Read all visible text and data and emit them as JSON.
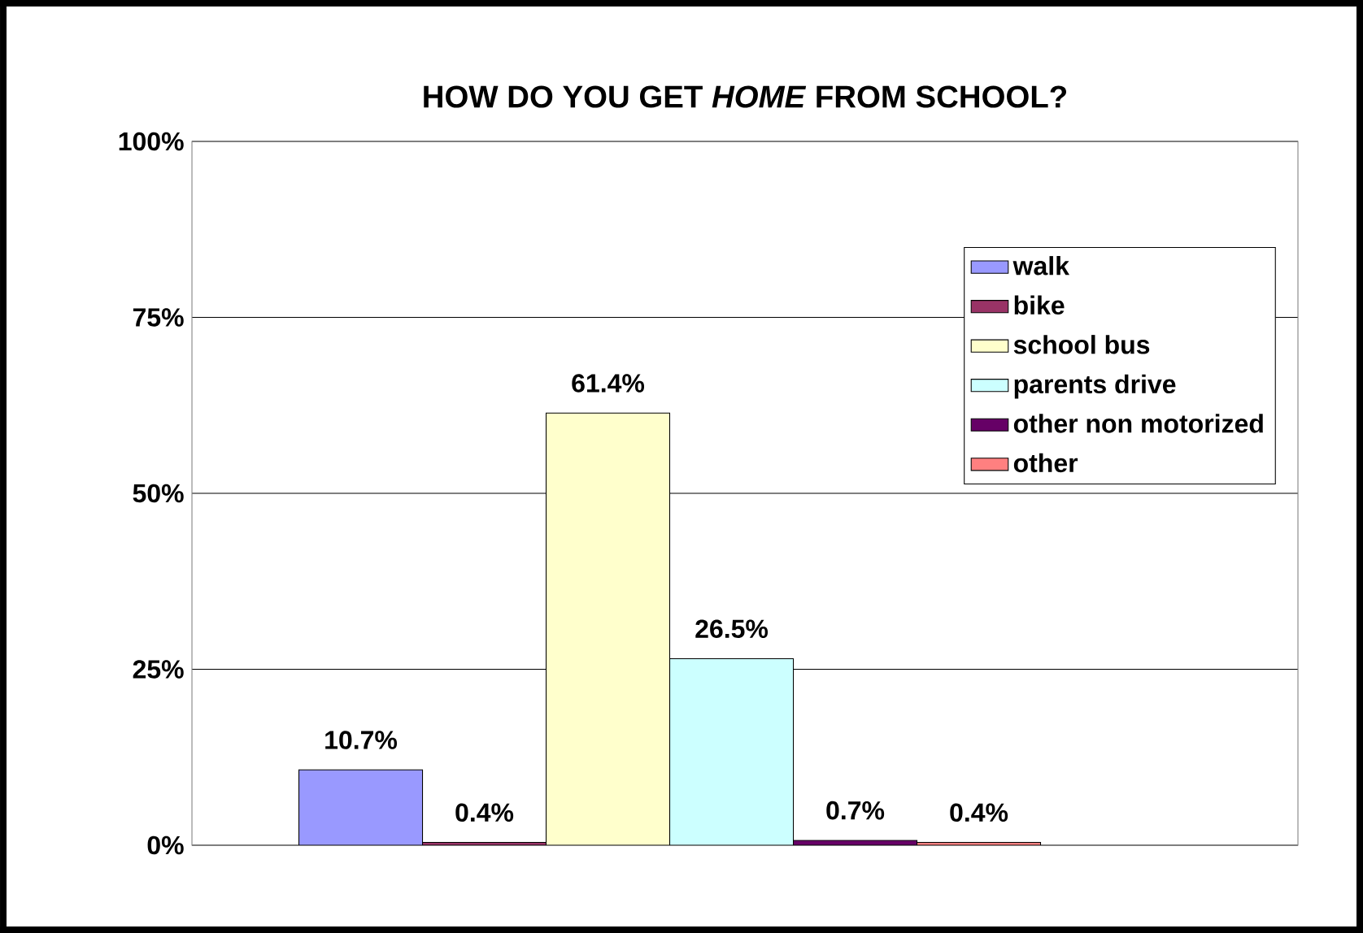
{
  "chart_data": {
    "type": "bar",
    "title": "HOW DO YOU GET *HOME* FROM SCHOOL?",
    "categories": [
      null
    ],
    "series": [
      {
        "name": "walk",
        "color": "#9999ff",
        "values": [
          10.7
        ],
        "value_labels": [
          "10.7%"
        ]
      },
      {
        "name": "bike",
        "color": "#993366",
        "values": [
          0.4
        ],
        "value_labels": [
          "0.4%"
        ]
      },
      {
        "name": "school bus",
        "color": "#ffffcc",
        "values": [
          61.4
        ],
        "value_labels": [
          "61.4%"
        ]
      },
      {
        "name": "parents drive",
        "color": "#ccffff",
        "values": [
          26.5
        ],
        "value_labels": [
          "26.5%"
        ]
      },
      {
        "name": "other non motorized",
        "color": "#660066",
        "values": [
          0.7
        ],
        "value_labels": [
          "0.7%"
        ]
      },
      {
        "name": "other",
        "color": "#ff8080",
        "values": [
          0.4
        ],
        "value_labels": [
          "0.4%"
        ]
      }
    ],
    "ylim": [
      0,
      100
    ],
    "yticks": [
      {
        "value": 0,
        "label": "0%"
      },
      {
        "value": 25,
        "label": "25%"
      },
      {
        "value": 50,
        "label": "50%"
      },
      {
        "value": 75,
        "label": "75%"
      },
      {
        "value": 100,
        "label": "100%"
      }
    ],
    "grid": "y",
    "legend": "right"
  }
}
